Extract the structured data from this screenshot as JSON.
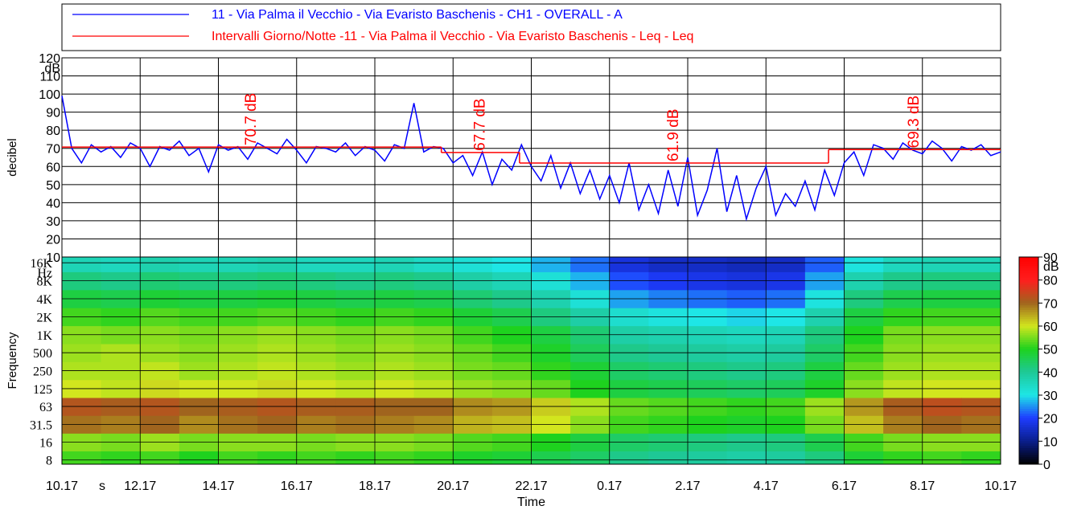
{
  "chart_data": [
    {
      "type": "line",
      "ylabel": "decibel",
      "yunit": "dB",
      "ylim": [
        10,
        120
      ],
      "yticks": [
        10,
        20,
        30,
        40,
        50,
        60,
        70,
        80,
        90,
        100,
        110,
        120
      ],
      "xlim": [
        0,
        24
      ],
      "grid": true,
      "series": [
        {
          "name": "11 - Via Palma il Vecchio - Via Evaristo Baschenis - CH1 - OVERALL - A",
          "color": "#0000ff",
          "x": [
            0,
            0.25,
            0.5,
            0.75,
            1,
            1.25,
            1.5,
            1.75,
            2,
            2.25,
            2.5,
            2.75,
            3,
            3.25,
            3.5,
            3.75,
            4,
            4.25,
            4.5,
            4.75,
            5,
            5.25,
            5.5,
            5.75,
            6,
            6.25,
            6.5,
            6.75,
            7,
            7.25,
            7.5,
            7.75,
            8,
            8.25,
            8.5,
            8.75,
            9,
            9.25,
            9.5,
            9.75,
            10,
            10.25,
            10.5,
            10.75,
            11,
            11.25,
            11.5,
            11.75,
            12,
            12.25,
            12.5,
            12.75,
            13,
            13.25,
            13.5,
            13.75,
            14,
            14.25,
            14.5,
            14.75,
            15,
            15.25,
            15.5,
            15.75,
            16,
            16.25,
            16.5,
            16.75,
            17,
            17.25,
            17.5,
            17.75,
            18,
            18.25,
            18.5,
            18.75,
            19,
            19.25,
            19.5,
            19.75,
            20,
            20.25,
            20.5,
            20.75,
            21,
            21.25,
            21.5,
            21.75,
            22,
            22.25,
            22.5,
            22.75,
            23,
            23.25,
            23.5,
            23.75,
            24
          ],
          "values": [
            99,
            70,
            62,
            72,
            68,
            71,
            65,
            73,
            70,
            60,
            71,
            69,
            74,
            66,
            70,
            57,
            72,
            69,
            71,
            64,
            73,
            70,
            67,
            75,
            69,
            62,
            71,
            70,
            68,
            73,
            66,
            71,
            69,
            63,
            72,
            70,
            95,
            68,
            71,
            70,
            62,
            66,
            55,
            68,
            50,
            64,
            58,
            72,
            60,
            52,
            66,
            48,
            62,
            45,
            58,
            42,
            55,
            40,
            62,
            36,
            50,
            34,
            58,
            38,
            65,
            33,
            47,
            70,
            35,
            55,
            31,
            48,
            60,
            33,
            45,
            38,
            52,
            36,
            58,
            44,
            62,
            68,
            55,
            72,
            70,
            64,
            73,
            69,
            67,
            74,
            70,
            63,
            71,
            69,
            72,
            66,
            68
          ]
        },
        {
          "name": "Intervalli Giorno/Notte -11 - Via Palma il Vecchio - Via Evaristo Baschenis - Leq - Leq",
          "color": "#ff0000",
          "intervals": [
            {
              "start": 0,
              "end": 9.7,
              "value": 70.7,
              "label": "70.7 dB"
            },
            {
              "start": 9.7,
              "end": 11.7,
              "value": 67.7,
              "label": "67.7 dB"
            },
            {
              "start": 11.7,
              "end": 19.6,
              "value": 61.9,
              "label": "61.9 dB"
            },
            {
              "start": 19.6,
              "end": 24,
              "value": 69.3,
              "label": "69.3 dB"
            }
          ]
        }
      ]
    },
    {
      "type": "heatmap",
      "xlabel": "Time",
      "xunit": "s",
      "ylabel": "Frequency",
      "yunit": "Hz",
      "xlim": [
        0,
        24
      ],
      "xticks": [
        {
          "value": 0,
          "label": "10.17"
        },
        {
          "value": 2,
          "label": "12.17"
        },
        {
          "value": 4,
          "label": "14.17"
        },
        {
          "value": 6,
          "label": "16.17"
        },
        {
          "value": 8,
          "label": "18.17"
        },
        {
          "value": 10,
          "label": "20.17"
        },
        {
          "value": 12,
          "label": "22.17"
        },
        {
          "value": 14,
          "label": "0.17"
        },
        {
          "value": 16,
          "label": "2.17"
        },
        {
          "value": 18,
          "label": "4.17"
        },
        {
          "value": 20,
          "label": "6.17"
        },
        {
          "value": 22,
          "label": "8.17"
        },
        {
          "value": 24,
          "label": "10.17"
        }
      ],
      "ylim": [
        6.8,
        20000
      ],
      "log_y": true,
      "yticks": [
        8,
        16,
        31.5,
        63,
        125,
        250,
        500,
        {
          "value": 1000,
          "label": "1K"
        },
        {
          "value": 2000,
          "label": "2K"
        },
        {
          "value": 4000,
          "label": "4K"
        },
        {
          "value": 8000,
          "label": "8K"
        },
        {
          "value": 16000,
          "label": "16K"
        }
      ],
      "zlim": [
        0,
        90
      ],
      "zunit": "dB",
      "zticks": [
        0,
        10,
        20,
        30,
        40,
        50,
        60,
        70,
        80,
        90
      ],
      "colormap": [
        "#000000",
        "#0a1e8c",
        "#1e3cff",
        "#1ee6e6",
        "#1ec896",
        "#1ed21e",
        "#d2e61e",
        "#a0641e",
        "#ff1e1e",
        "#ff0000"
      ],
      "bands": [
        8,
        16,
        31.5,
        63,
        125,
        250,
        500,
        1000,
        2000,
        4000,
        8000,
        16000
      ],
      "times": [
        0,
        1,
        2,
        3,
        4,
        5,
        6,
        7,
        8,
        9,
        10,
        11,
        12,
        13,
        14,
        15,
        16,
        17,
        18,
        19,
        20,
        21,
        22,
        23,
        24
      ],
      "z": [
        [
          52,
          56,
          69,
          72,
          60,
          58,
          57,
          56,
          52,
          47,
          42,
          36
        ],
        [
          51,
          55,
          68,
          71,
          59,
          58,
          58,
          55,
          51,
          46,
          41,
          35
        ],
        [
          52,
          57,
          70,
          72,
          61,
          59,
          57,
          56,
          53,
          48,
          43,
          37
        ],
        [
          50,
          55,
          67,
          70,
          60,
          57,
          56,
          55,
          52,
          47,
          42,
          36
        ],
        [
          52,
          56,
          69,
          71,
          60,
          58,
          57,
          56,
          52,
          47,
          42,
          36
        ],
        [
          51,
          56,
          70,
          72,
          61,
          59,
          58,
          57,
          53,
          48,
          43,
          37
        ],
        [
          52,
          55,
          68,
          71,
          60,
          58,
          57,
          56,
          52,
          47,
          42,
          35
        ],
        [
          51,
          56,
          69,
          71,
          59,
          57,
          56,
          55,
          51,
          46,
          41,
          35
        ],
        [
          52,
          56,
          68,
          70,
          60,
          58,
          57,
          56,
          52,
          47,
          42,
          36
        ],
        [
          51,
          55,
          67,
          70,
          59,
          57,
          56,
          55,
          51,
          46,
          41,
          34
        ],
        [
          49,
          53,
          64,
          67,
          57,
          55,
          54,
          52,
          48,
          43,
          38,
          32
        ],
        [
          48,
          52,
          63,
          66,
          56,
          54,
          52,
          50,
          46,
          41,
          36,
          30
        ],
        [
          46,
          50,
          60,
          62,
          54,
          51,
          49,
          47,
          42,
          37,
          32,
          27
        ],
        [
          44,
          47,
          56,
          58,
          50,
          48,
          45,
          43,
          38,
          32,
          27,
          23
        ],
        [
          41,
          44,
          52,
          54,
          47,
          44,
          41,
          38,
          33,
          26,
          21,
          17
        ],
        [
          40,
          43,
          51,
          53,
          46,
          43,
          40,
          37,
          31,
          24,
          19,
          15
        ],
        [
          39,
          42,
          50,
          52,
          45,
          42,
          39,
          36,
          30,
          23,
          18,
          15
        ],
        [
          38,
          41,
          49,
          51,
          44,
          41,
          38,
          35,
          29,
          22,
          17,
          14
        ],
        [
          39,
          42,
          50,
          52,
          45,
          42,
          39,
          36,
          30,
          23,
          18,
          15
        ],
        [
          42,
          46,
          55,
          57,
          49,
          47,
          44,
          42,
          37,
          31,
          26,
          22
        ],
        [
          48,
          52,
          63,
          66,
          56,
          54,
          52,
          50,
          47,
          42,
          37,
          31
        ],
        [
          51,
          55,
          68,
          71,
          59,
          57,
          56,
          55,
          51,
          46,
          41,
          35
        ],
        [
          52,
          56,
          70,
          73,
          60,
          58,
          57,
          56,
          52,
          47,
          42,
          36
        ],
        [
          51,
          56,
          69,
          72,
          60,
          58,
          57,
          56,
          52,
          47,
          42,
          36
        ]
      ]
    }
  ]
}
